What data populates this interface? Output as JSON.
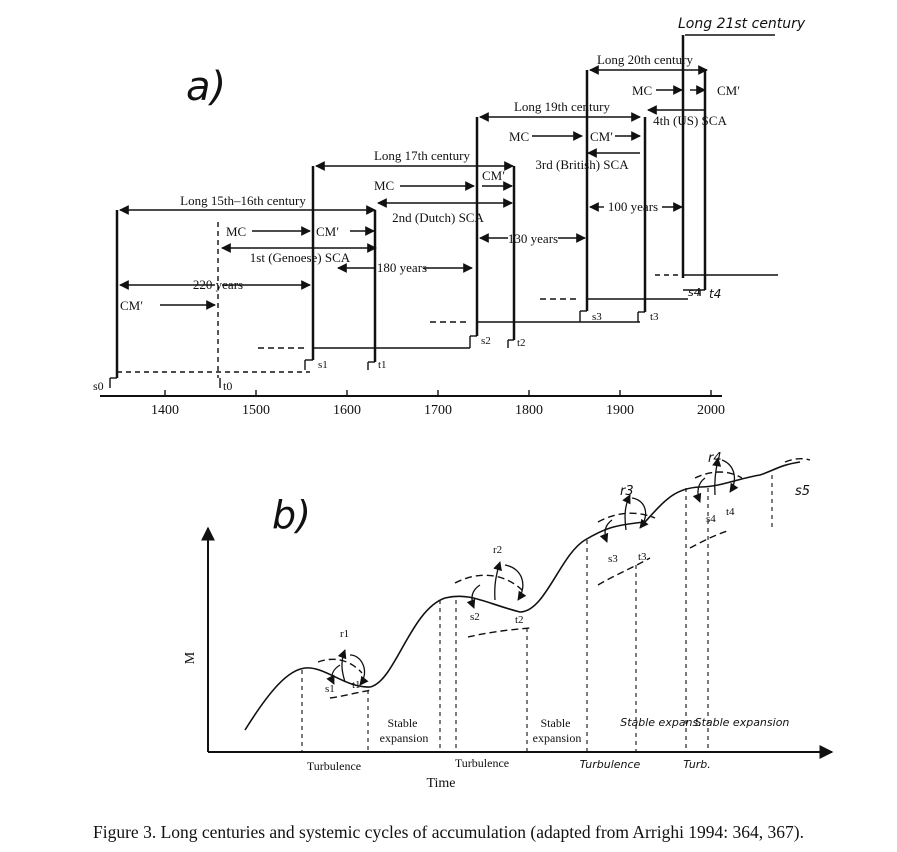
{
  "panel_a": {
    "label": "a)",
    "timeline_ticks": [
      "1400",
      "1500",
      "1600",
      "1700",
      "1800",
      "1900",
      "2000"
    ],
    "long_centuries": [
      "Long 15th–16th century",
      "Long 17th century",
      "Long 19th century",
      "Long 20th century",
      "Long 21st century"
    ],
    "cycles": [
      "1st (Genoese) SCA",
      "2nd (Dutch) SCA",
      "3rd (British) SCA",
      "4th (US) SCA"
    ],
    "durations": [
      "220 years",
      "180 years",
      "130 years",
      "100 years"
    ],
    "phase_mc": "MC",
    "phase_cm": "CM′",
    "signal_labels": [
      "s0",
      "t0",
      "s1",
      "t1",
      "s2",
      "t2",
      "s3",
      "t3",
      "s4",
      "t4"
    ]
  },
  "panel_b": {
    "label": "b)",
    "y_axis": "M",
    "x_axis": "Time",
    "phase_labels": [
      "Turbulence",
      "Stable expansion",
      "Turbulence",
      "Stable expansion",
      "Turbulence",
      "Stable expans.",
      "Turb.",
      "Stable expansion"
    ],
    "point_labels": [
      "r1",
      "s1",
      "t1",
      "r2",
      "s2",
      "t2",
      "r3",
      "s3",
      "t3",
      "r4",
      "s4",
      "t4",
      "s5"
    ]
  },
  "caption": "Figure 3. Long centuries and systemic cycles of accumulation (adapted from Arrighi 1994: 364, 367)."
}
